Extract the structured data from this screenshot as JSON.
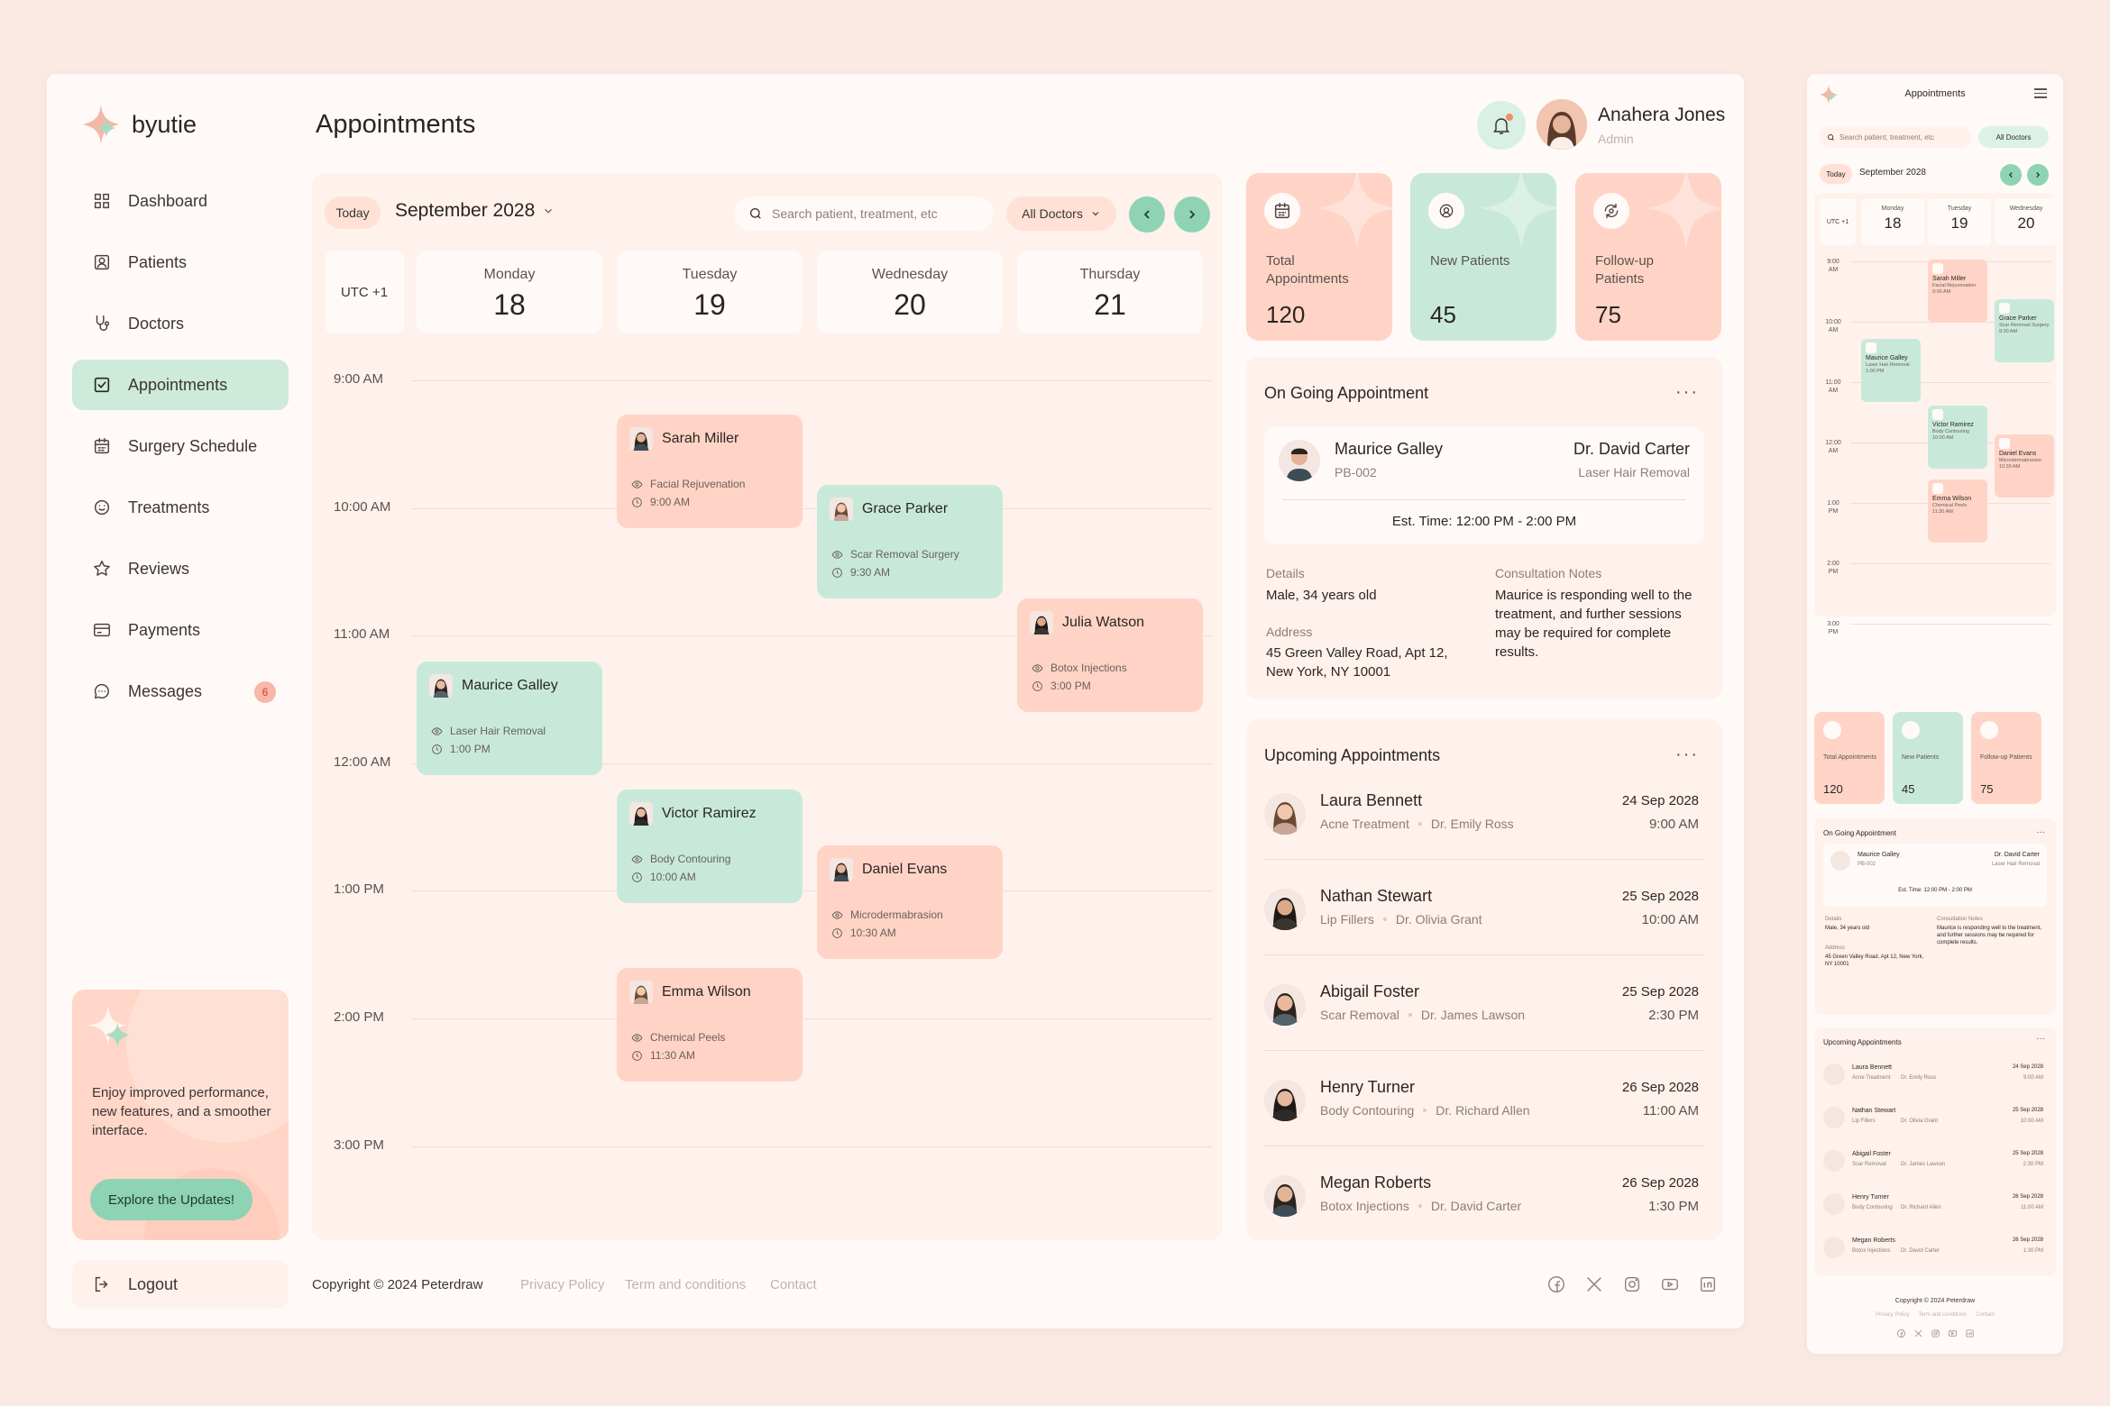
{
  "app": {
    "brand": "byutie",
    "page_title": "Appointments"
  },
  "user": {
    "name": "Anahera Jones",
    "role": "Admin"
  },
  "sidebar": {
    "items": [
      {
        "label": "Dashboard",
        "icon": "grid-icon"
      },
      {
        "label": "Patients",
        "icon": "patient-icon"
      },
      {
        "label": "Doctors",
        "icon": "stethoscope-icon"
      },
      {
        "label": "Appointments",
        "icon": "checkbox-icon",
        "active": true
      },
      {
        "label": "Surgery Schedule",
        "icon": "calendar-icon"
      },
      {
        "label": "Treatments",
        "icon": "face-icon"
      },
      {
        "label": "Reviews",
        "icon": "star-icon"
      },
      {
        "label": "Payments",
        "icon": "card-icon"
      },
      {
        "label": "Messages",
        "icon": "chat-icon",
        "badge": "6"
      }
    ],
    "promo": {
      "text": "Enjoy improved performance, new features, and a smoother interface.",
      "button": "Explore the Updates!"
    },
    "logout": "Logout"
  },
  "calendar": {
    "today": "Today",
    "month": "September 2028",
    "search_placeholder": "Search patient, treatment, etc",
    "doctor_filter": "All Doctors",
    "timezone": "UTC +1",
    "days": [
      {
        "name": "Monday",
        "num": "18"
      },
      {
        "name": "Tuesday",
        "num": "19"
      },
      {
        "name": "Wednesday",
        "num": "20"
      },
      {
        "name": "Thursday",
        "num": "21"
      }
    ],
    "times": [
      "9:00 AM",
      "10:00 AM",
      "11:00 AM",
      "12:00 AM",
      "1:00 PM",
      "2:00 PM",
      "3:00 PM"
    ],
    "events": [
      {
        "name": "Sarah Miller",
        "treatment": "Facial Rejuvenation",
        "time": "9:00 AM",
        "color": "peach"
      },
      {
        "name": "Grace Parker",
        "treatment": "Scar Removal Surgery",
        "time": "9:30 AM",
        "color": "mint"
      },
      {
        "name": "Julia Watson",
        "treatment": "Botox Injections",
        "time": "3:00 PM",
        "color": "peach"
      },
      {
        "name": "Maurice Galley",
        "treatment": "Laser Hair Removal",
        "time": "1:00 PM",
        "color": "mint"
      },
      {
        "name": "Victor Ramirez",
        "treatment": "Body Contouring",
        "time": "10:00 AM",
        "color": "mint"
      },
      {
        "name": "Daniel Evans",
        "treatment": "Microdermabrasion",
        "time": "10:30 AM",
        "color": "peach"
      },
      {
        "name": "Emma Wilson",
        "treatment": "Chemical Peels",
        "time": "11:30 AM",
        "color": "peach"
      }
    ]
  },
  "stats": [
    {
      "label": "Total Appointments",
      "value": "120",
      "color": "#ffd4c6",
      "icon": "calendar-icon"
    },
    {
      "label": "New Patients",
      "value": "45",
      "color": "#c8e9da",
      "icon": "new-patient-icon"
    },
    {
      "label": "Follow-up Patients",
      "value": "75",
      "color": "#ffd4c6",
      "icon": "follow-up-icon"
    }
  ],
  "ongoing": {
    "title": "On Going Appointment",
    "patient": "Maurice Galley",
    "patient_id": "PB-002",
    "doctor": "Dr. David Carter",
    "treatment": "Laser Hair Removal",
    "est_time": "Est. Time: 12:00 PM - 2:00 PM",
    "details_label": "Details",
    "details": "Male, 34 years old",
    "address_label": "Address",
    "address": "45 Green Valley Road, Apt 12, New York, NY 10001",
    "notes_label": "Consultation Notes",
    "notes": "Maurice is responding well to the treatment, and further sessions may be required for complete results."
  },
  "upcoming": {
    "title": "Upcoming Appointments",
    "items": [
      {
        "name": "Laura Bennett",
        "treatment": "Acne Treatment",
        "doctor": "Dr. Emily Ross",
        "date": "24 Sep 2028",
        "time": "9:00 AM"
      },
      {
        "name": "Nathan Stewart",
        "treatment": "Lip Fillers",
        "doctor": "Dr. Olivia Grant",
        "date": "25 Sep 2028",
        "time": "10:00 AM"
      },
      {
        "name": "Abigail Foster",
        "treatment": "Scar Removal",
        "doctor": "Dr. James Lawson",
        "date": "25 Sep 2028",
        "time": "2:30 PM"
      },
      {
        "name": "Henry Turner",
        "treatment": "Body Contouring",
        "doctor": "Dr. Richard Allen",
        "date": "26 Sep 2028",
        "time": "11:00 AM"
      },
      {
        "name": "Megan Roberts",
        "treatment": "Botox Injections",
        "doctor": "Dr. David Carter",
        "date": "26 Sep 2028",
        "time": "1:30 PM"
      }
    ]
  },
  "footer": {
    "copyright": "Copyright © 2024 Peterdraw",
    "links": [
      "Privacy Policy",
      "Term and conditions",
      "Contact"
    ],
    "social": [
      "facebook-icon",
      "x-icon",
      "instagram-icon",
      "youtube-icon",
      "linkedin-icon"
    ]
  },
  "mobile": {
    "title": "Appointments",
    "calendar_times": [
      "9:00 AM",
      "10:00 AM",
      "11:00 AM",
      "12:00 AM",
      "1:00 PM",
      "2:00 PM",
      "3:00 PM"
    ]
  }
}
